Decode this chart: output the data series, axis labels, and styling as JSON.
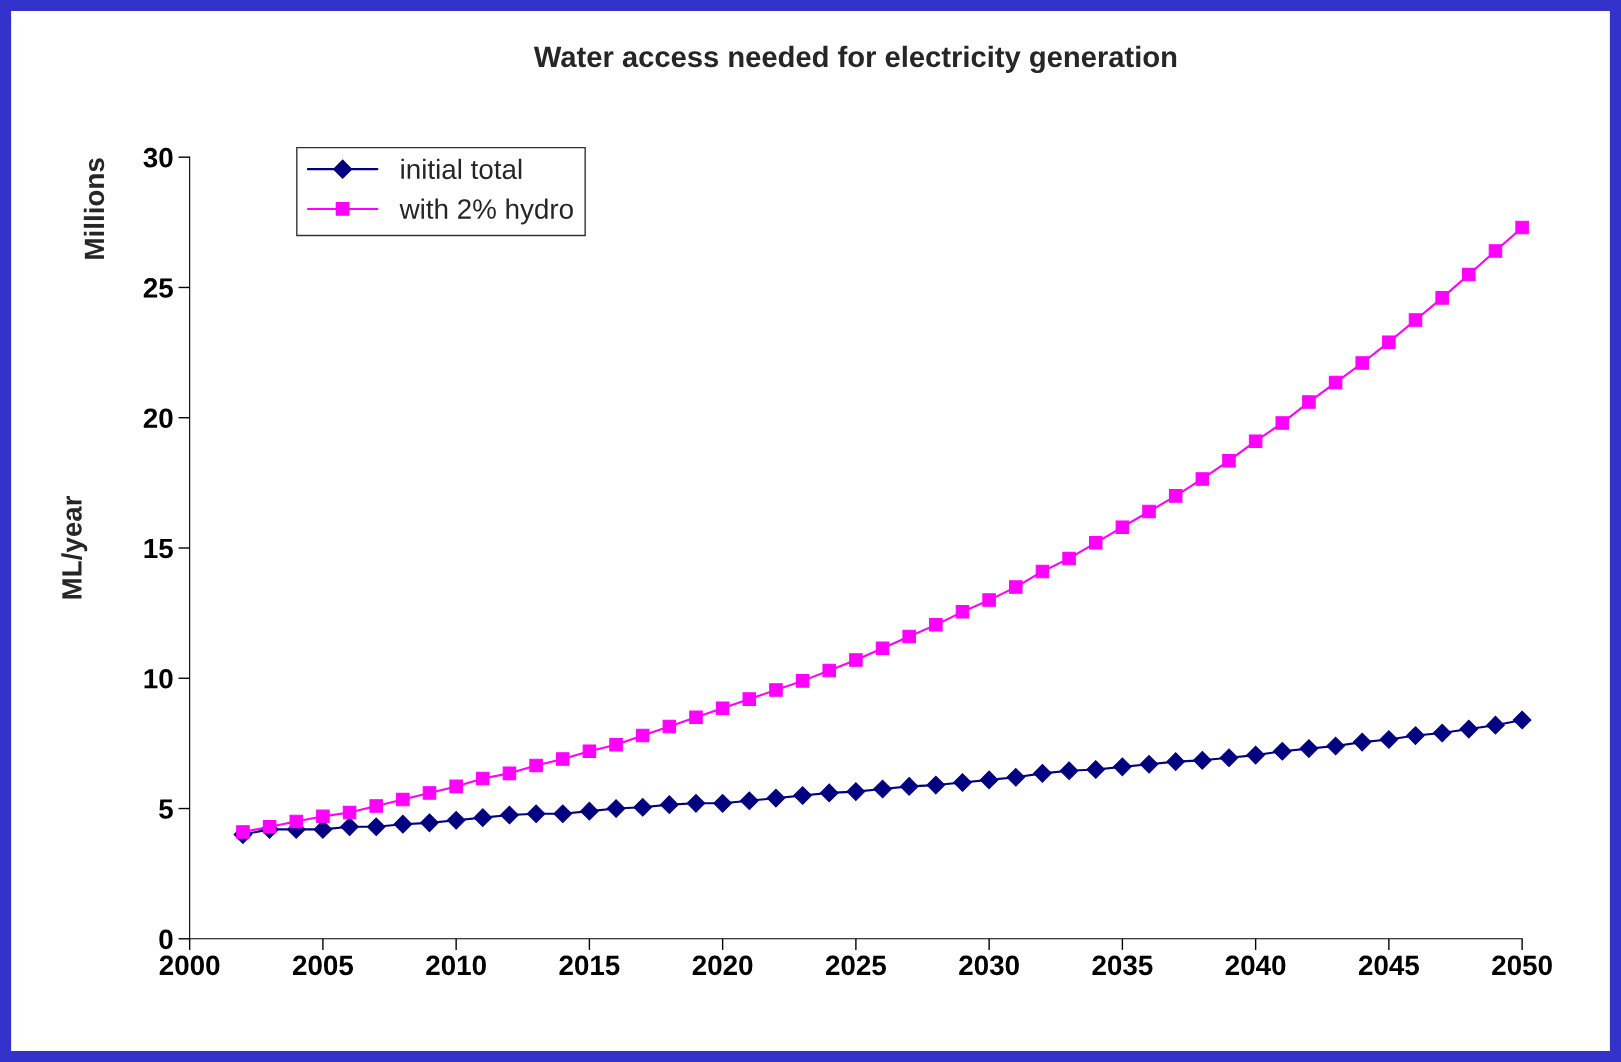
{
  "chart_data": {
    "type": "line",
    "title": "Water access needed for electricity generation",
    "ylabel": "ML/year",
    "annotations": [
      "Millions"
    ],
    "x": [
      2002,
      2003,
      2004,
      2005,
      2006,
      2007,
      2008,
      2009,
      2010,
      2011,
      2012,
      2013,
      2014,
      2015,
      2016,
      2017,
      2018,
      2019,
      2020,
      2021,
      2022,
      2023,
      2024,
      2025,
      2026,
      2027,
      2028,
      2029,
      2030,
      2031,
      2032,
      2033,
      2034,
      2035,
      2036,
      2037,
      2038,
      2039,
      2040,
      2041,
      2042,
      2043,
      2044,
      2045,
      2046,
      2047,
      2048,
      2049,
      2050
    ],
    "series": [
      {
        "name": "initial total",
        "color": "#000080",
        "marker": "diamond",
        "values": [
          4.0,
          4.2,
          4.2,
          4.2,
          4.3,
          4.3,
          4.4,
          4.45,
          4.55,
          4.65,
          4.75,
          4.8,
          4.8,
          4.9,
          5.0,
          5.05,
          5.15,
          5.2,
          5.2,
          5.3,
          5.4,
          5.5,
          5.6,
          5.65,
          5.75,
          5.85,
          5.9,
          6.0,
          6.1,
          6.2,
          6.35,
          6.45,
          6.5,
          6.6,
          6.7,
          6.8,
          6.85,
          6.95,
          7.05,
          7.2,
          7.3,
          7.4,
          7.55,
          7.65,
          7.8,
          7.9,
          8.05,
          8.2,
          8.4
        ]
      },
      {
        "name": "with 2% hydro",
        "color": "#ff00ff",
        "marker": "square",
        "values": [
          4.1,
          4.3,
          4.5,
          4.7,
          4.85,
          5.1,
          5.35,
          5.6,
          5.85,
          6.15,
          6.35,
          6.65,
          6.9,
          7.2,
          7.45,
          7.8,
          8.15,
          8.5,
          8.85,
          9.2,
          9.55,
          9.9,
          10.3,
          10.7,
          11.15,
          11.6,
          12.05,
          12.55,
          13.0,
          13.5,
          14.1,
          14.6,
          15.2,
          15.8,
          16.4,
          17.0,
          17.65,
          18.35,
          19.1,
          19.8,
          20.6,
          21.35,
          22.1,
          22.9,
          23.75,
          24.6,
          25.5,
          26.4,
          27.3
        ]
      }
    ],
    "xlim": [
      2000,
      2050
    ],
    "xticks": [
      2000,
      2005,
      2010,
      2015,
      2020,
      2025,
      2030,
      2035,
      2040,
      2045,
      2050
    ],
    "ylim": [
      0,
      30
    ],
    "yticks": [
      0,
      5,
      10,
      15,
      20,
      25,
      30
    ],
    "grid": false,
    "legend": "top left",
    "line_style": "solid"
  }
}
